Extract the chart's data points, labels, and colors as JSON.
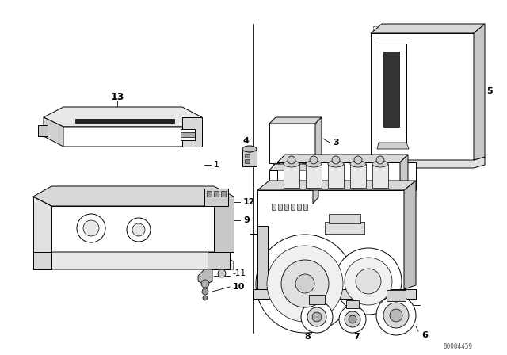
{
  "bg_color": "#ffffff",
  "fig_width": 6.4,
  "fig_height": 4.48,
  "dpi": 100,
  "watermark": "00004459",
  "lc": "#000000",
  "lw": 0.7
}
